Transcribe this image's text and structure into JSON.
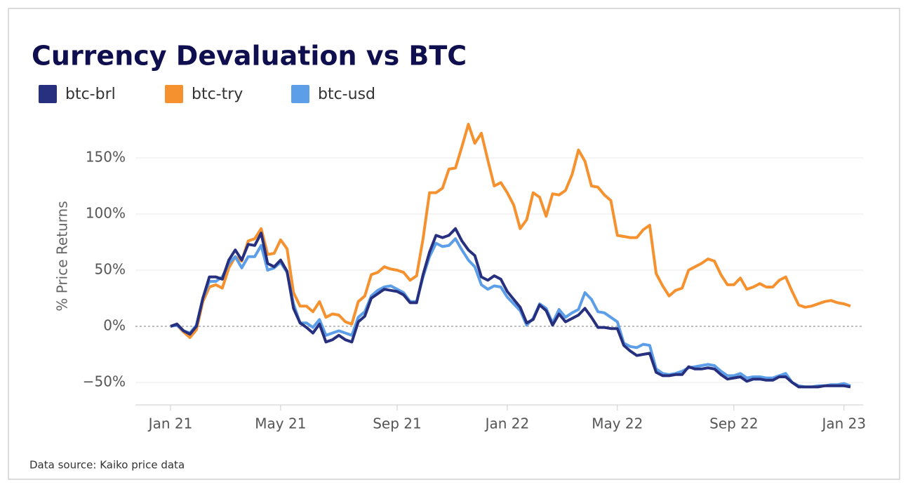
{
  "chart_data": {
    "type": "line",
    "title": "Currency Devaluation vs BTC",
    "y_label": "% Price Returns",
    "source": "Data source: Kaiko price data",
    "categories": [
      "Jan 21",
      null,
      null,
      null,
      null,
      null,
      null,
      null,
      null,
      null,
      null,
      null,
      null,
      null,
      null,
      null,
      null,
      "May 21",
      null,
      null,
      null,
      null,
      null,
      null,
      null,
      null,
      null,
      null,
      null,
      null,
      null,
      null,
      null,
      null,
      null,
      "Sep 21",
      null,
      null,
      null,
      null,
      null,
      null,
      null,
      null,
      null,
      null,
      null,
      null,
      null,
      null,
      null,
      null,
      "Jan 22",
      null,
      null,
      null,
      null,
      null,
      null,
      null,
      null,
      null,
      null,
      null,
      null,
      null,
      null,
      null,
      null,
      "May 22",
      null,
      null,
      null,
      null,
      null,
      null,
      null,
      null,
      null,
      null,
      null,
      null,
      null,
      null,
      null,
      null,
      null,
      "Sep 22",
      null,
      null,
      null,
      null,
      null,
      null,
      null,
      null,
      null,
      null,
      null,
      null,
      null,
      null,
      null,
      null,
      "Jan 23",
      null
    ],
    "series": [
      {
        "name": "btc-brl",
        "color": "#27307f",
        "values": [
          0,
          2,
          -4,
          -7,
          0,
          25,
          44,
          44,
          42,
          59,
          68,
          59,
          73,
          72,
          83,
          56,
          53,
          59,
          49,
          16,
          3,
          -1,
          -6,
          2,
          -14,
          -12,
          -8,
          -12,
          -14,
          4,
          9,
          25,
          29,
          33,
          32,
          31,
          28,
          21,
          21,
          46,
          66,
          81,
          79,
          81,
          87,
          76,
          68,
          63,
          44,
          41,
          45,
          42,
          31,
          24,
          17,
          3,
          6,
          19,
          14,
          1,
          11,
          4,
          7,
          10,
          16,
          8,
          -1,
          -1,
          -2,
          -2,
          -17,
          -22,
          -26,
          -25,
          -24,
          -41,
          -44,
          -44,
          -43,
          -43,
          -36,
          -38,
          -38,
          -37,
          -38,
          -43,
          -47,
          -46,
          -45,
          -49,
          -47,
          -47,
          -48,
          -48,
          -45,
          -45,
          -50,
          -54,
          -54,
          -54,
          -54,
          -53,
          -53,
          -53,
          -53,
          -54
        ]
      },
      {
        "name": "btc-try",
        "color": "#f5912e",
        "values": [
          0,
          1,
          -5,
          -10,
          -3,
          22,
          35,
          37,
          34,
          52,
          62,
          58,
          76,
          78,
          87,
          64,
          65,
          77,
          69,
          30,
          18,
          18,
          13,
          22,
          8,
          11,
          10,
          4,
          2,
          22,
          27,
          46,
          48,
          53,
          51,
          50,
          48,
          41,
          45,
          78,
          119,
          119,
          123,
          140,
          141,
          160,
          180,
          163,
          172,
          148,
          125,
          128,
          119,
          108,
          87,
          95,
          119,
          115,
          98,
          118,
          117,
          121,
          135,
          157,
          147,
          125,
          124,
          117,
          112,
          81,
          80,
          79,
          79,
          86,
          90,
          47,
          36,
          27,
          32,
          34,
          50,
          53,
          56,
          60,
          58,
          46,
          37,
          37,
          43,
          33,
          35,
          38,
          35,
          35,
          41,
          44,
          31,
          19,
          17,
          18,
          20,
          22,
          23,
          21,
          20,
          18
        ]
      },
      {
        "name": "btc-usd",
        "color": "#5c9ee8",
        "values": [
          0,
          1,
          -4,
          -6,
          1,
          25,
          40,
          40,
          44,
          56,
          62,
          52,
          62,
          62,
          72,
          50,
          52,
          57,
          48,
          20,
          3,
          3,
          -1,
          6,
          -8,
          -6,
          -4,
          -6,
          -8,
          8,
          13,
          27,
          32,
          35,
          36,
          33,
          30,
          22,
          22,
          44,
          62,
          74,
          71,
          72,
          78,
          68,
          59,
          53,
          37,
          33,
          36,
          35,
          26,
          20,
          14,
          1,
          7,
          20,
          16,
          3,
          15,
          8,
          12,
          15,
          30,
          24,
          13,
          12,
          8,
          4,
          -15,
          -18,
          -19,
          -16,
          -17,
          -38,
          -42,
          -43,
          -42,
          -40,
          -37,
          -36,
          -35,
          -34,
          -35,
          -40,
          -44,
          -44,
          -42,
          -46,
          -45,
          -45,
          -46,
          -46,
          -44,
          -42,
          -50,
          -53,
          -54,
          -54,
          -53,
          -53,
          -52,
          -52,
          -51,
          -53
        ]
      }
    ],
    "ylim": [
      -70,
      190
    ],
    "yticks": [
      {
        "value": -50,
        "label": "−50%"
      },
      {
        "value": 0,
        "label": "0%"
      },
      {
        "value": 50,
        "label": "50%"
      },
      {
        "value": 100,
        "label": "100%"
      },
      {
        "value": 150,
        "label": "150%"
      }
    ],
    "grid": true
  }
}
